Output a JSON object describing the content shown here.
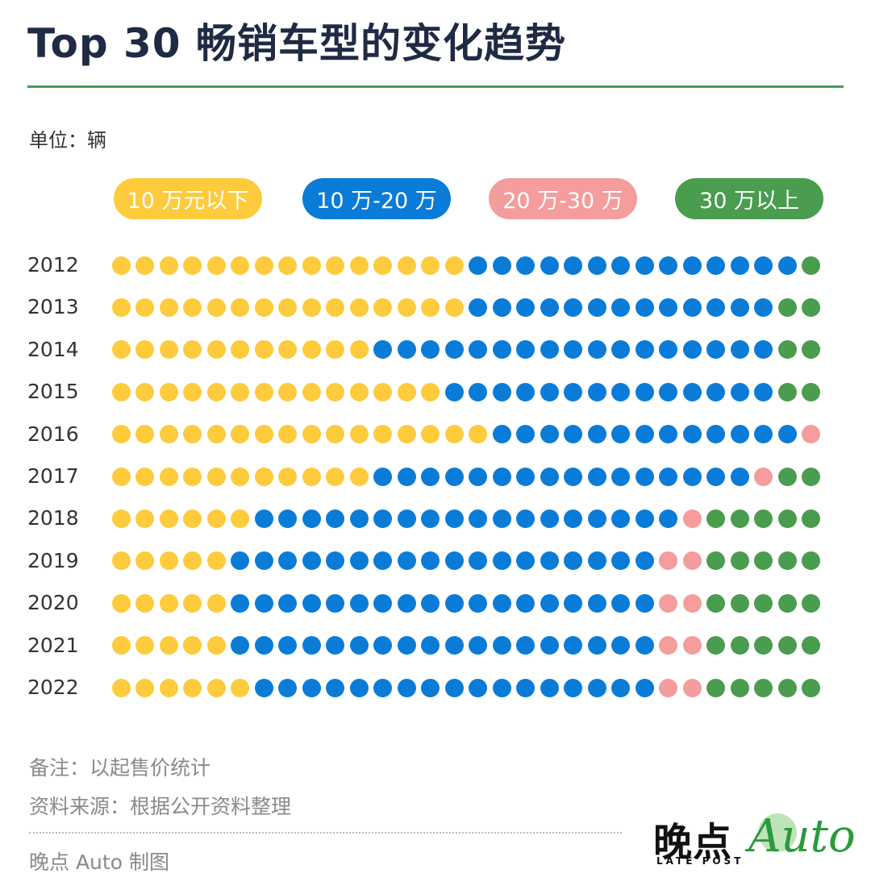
{
  "header": {
    "title": "Top 30 畅销车型的变化趋势",
    "unit": "单位：辆"
  },
  "legend": [
    {
      "label": "10 万元以下",
      "color": "#FDCB3C"
    },
    {
      "label": "10 万-20 万",
      "color": "#0A7CD8"
    },
    {
      "label": "20 万-30 万",
      "color": "#F59C9C"
    },
    {
      "label": "30 万以上",
      "color": "#4A9C4E"
    }
  ],
  "chart_data": {
    "type": "dot-matrix",
    "title": "Top 30 畅销车型的变化趋势",
    "unit": "单位：辆",
    "dots_per_row": 30,
    "categories": [
      "2012",
      "2013",
      "2014",
      "2015",
      "2016",
      "2017",
      "2018",
      "2019",
      "2020",
      "2021",
      "2022"
    ],
    "series": [
      {
        "name": "10 万元以下",
        "color": "#FDCB3C",
        "values": [
          15,
          15,
          11,
          14,
          16,
          11,
          6,
          5,
          5,
          5,
          6
        ]
      },
      {
        "name": "10 万-20 万",
        "color": "#0A7CD8",
        "values": [
          14,
          13,
          17,
          14,
          13,
          16,
          18,
          18,
          18,
          18,
          17
        ]
      },
      {
        "name": "20 万-30 万",
        "color": "#F59C9C",
        "values": [
          0,
          0,
          0,
          0,
          1,
          1,
          1,
          2,
          2,
          2,
          2
        ]
      },
      {
        "name": "30 万以上",
        "color": "#4A9C4E",
        "values": [
          1,
          2,
          2,
          2,
          0,
          2,
          5,
          5,
          5,
          5,
          5
        ]
      }
    ]
  },
  "footer": {
    "note": "备注：以起售价统计",
    "source": "资料来源：根据公开资料整理",
    "credit": "晚点 Auto 制图"
  },
  "logo": {
    "cn": "晚点",
    "en": "LATE POST",
    "auto": "Auto"
  },
  "colors": {
    "title": "#1F2A44",
    "rule": "#4A9C4E"
  }
}
